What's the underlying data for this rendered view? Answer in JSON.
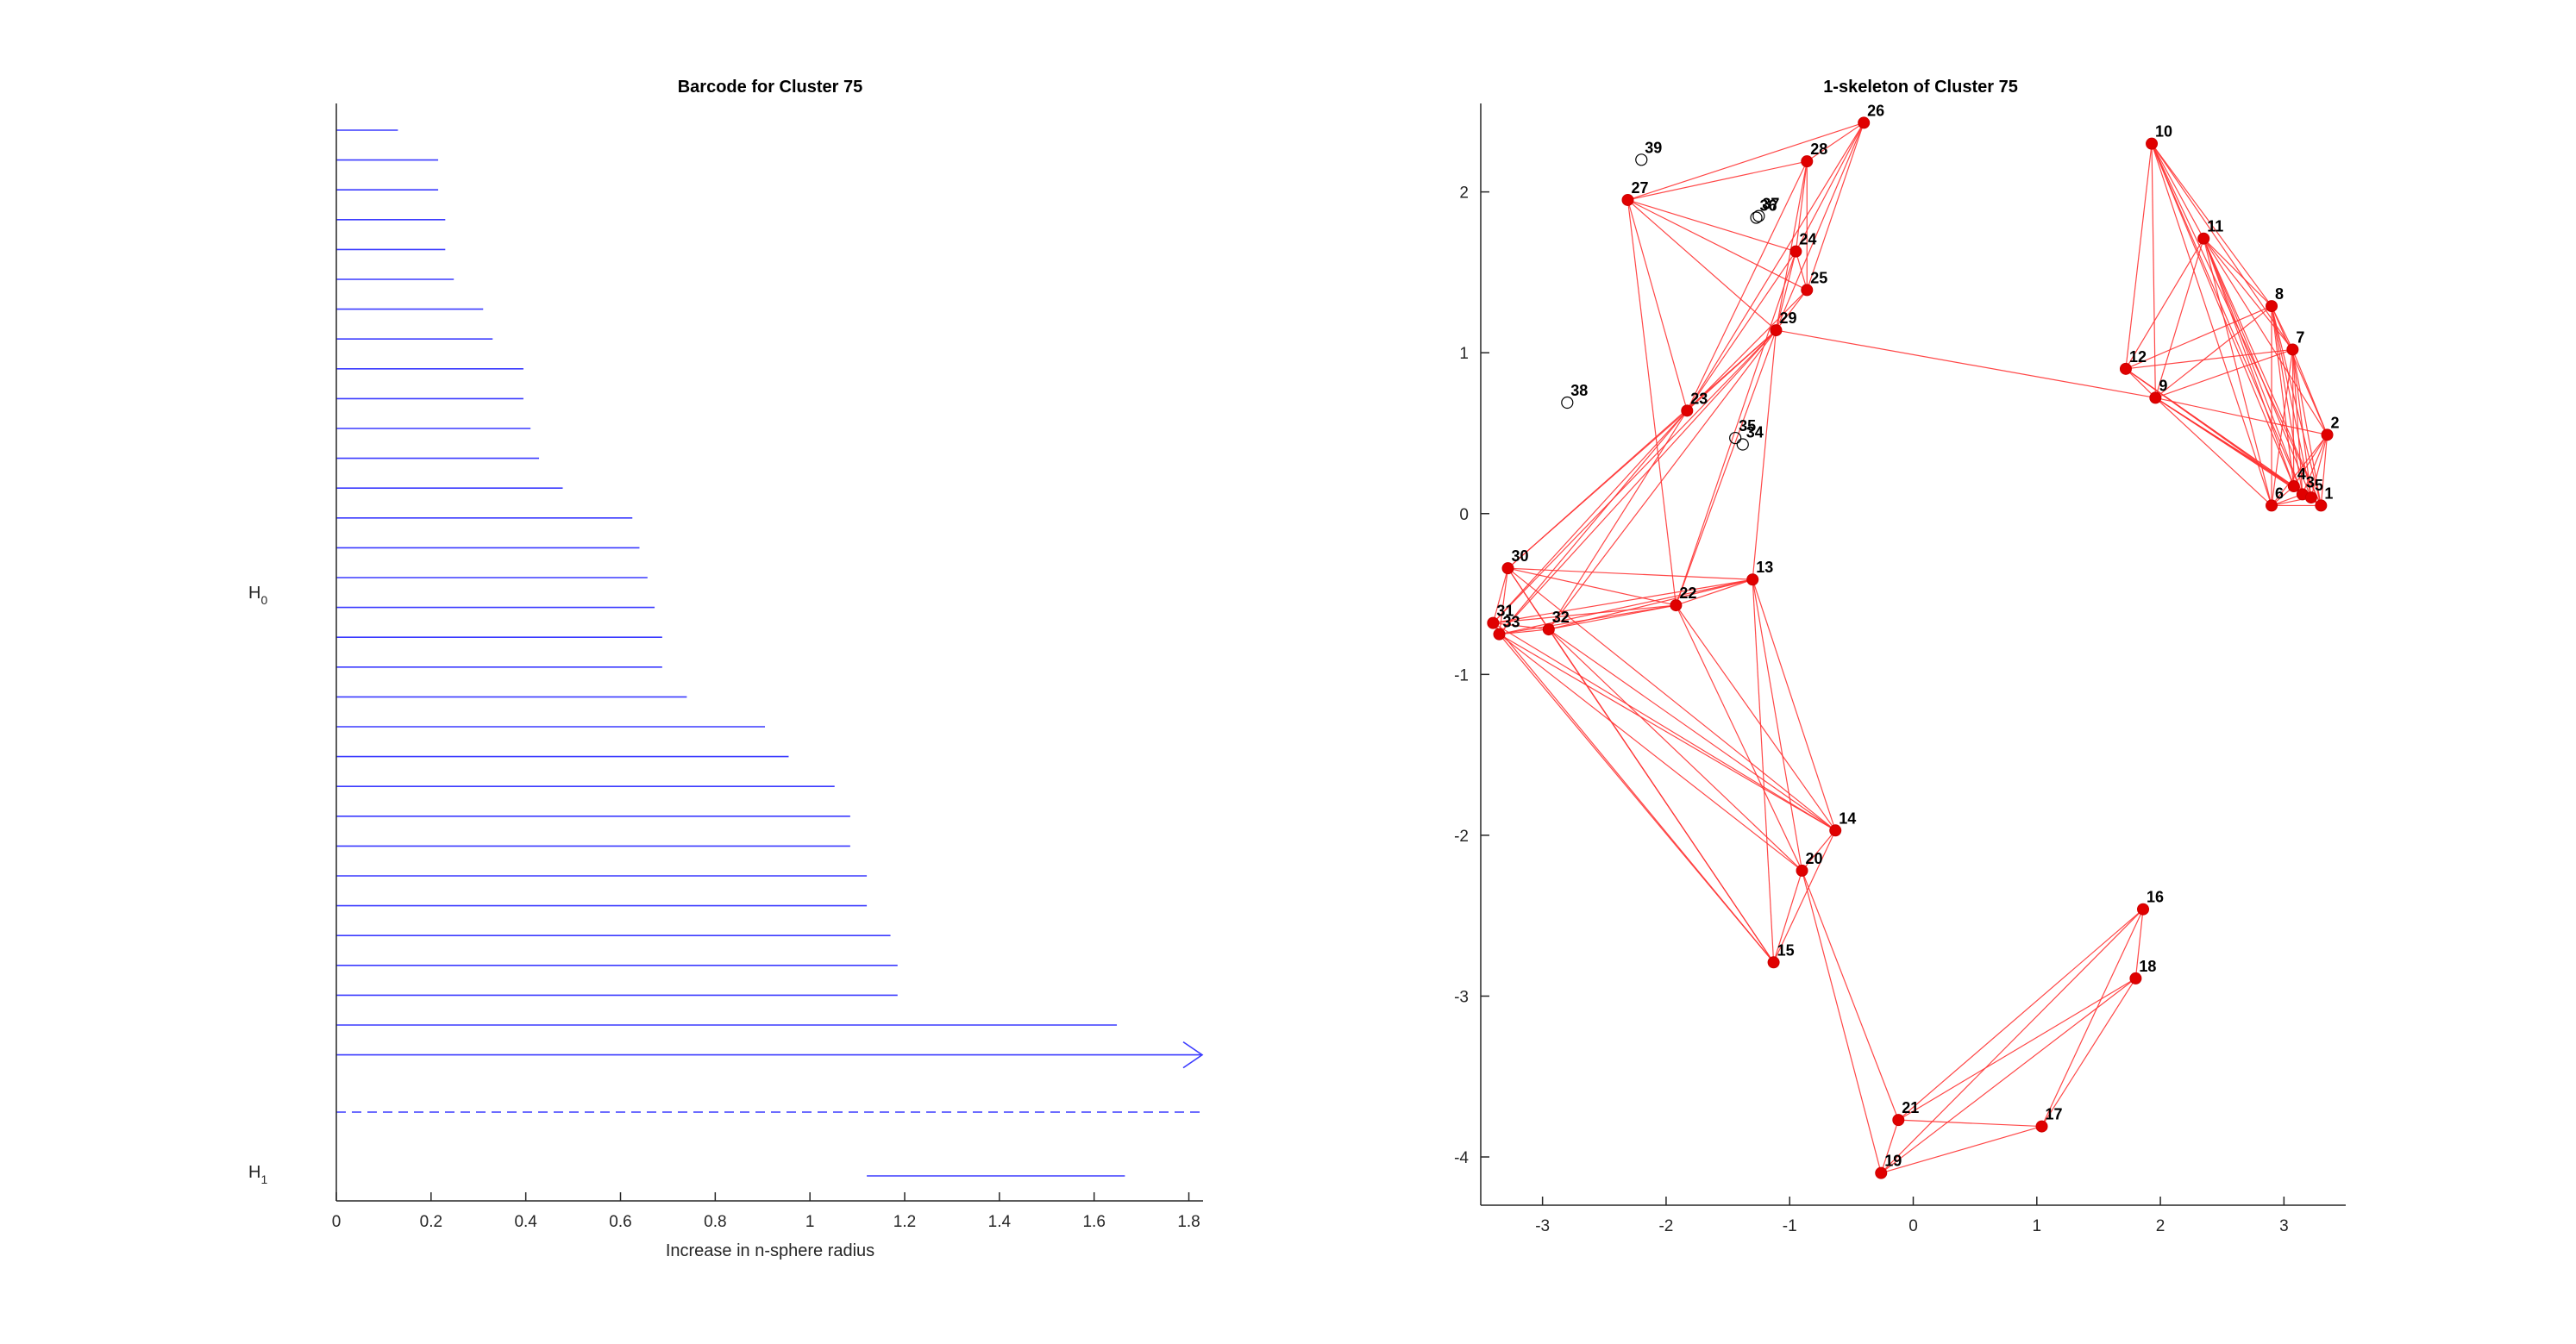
{
  "chart_data": [
    {
      "type": "barcode",
      "title": "Barcode for Cluster 75",
      "xlabel": "Increase in n-sphere radius",
      "xlim": [
        0,
        1.83
      ],
      "xticks": [
        "0",
        "0.2",
        "0.4",
        "0.6",
        "0.8",
        "1",
        "1.2",
        "1.4",
        "1.6",
        "1.8"
      ],
      "series": [
        {
          "name": "H0",
          "label_main": "H",
          "label_sub": "0",
          "bars": [
            [
              0,
              0.13
            ],
            [
              0,
              0.215
            ],
            [
              0,
              0.215
            ],
            [
              0,
              0.23
            ],
            [
              0,
              0.23
            ],
            [
              0,
              0.248
            ],
            [
              0,
              0.31
            ],
            [
              0,
              0.33
            ],
            [
              0,
              0.395
            ],
            [
              0,
              0.395
            ],
            [
              0,
              0.41
            ],
            [
              0,
              0.428
            ],
            [
              0,
              0.478
            ],
            [
              0,
              0.625
            ],
            [
              0,
              0.64
            ],
            [
              0,
              0.657
            ],
            [
              0,
              0.672
            ],
            [
              0,
              0.688
            ],
            [
              0,
              0.688
            ],
            [
              0,
              0.74
            ],
            [
              0,
              0.905
            ],
            [
              0,
              0.955
            ],
            [
              0,
              1.052
            ],
            [
              0,
              1.085
            ],
            [
              0,
              1.085
            ],
            [
              0,
              1.12
            ],
            [
              0,
              1.12
            ],
            [
              0,
              1.17
            ],
            [
              0,
              1.185
            ],
            [
              0,
              1.185
            ],
            [
              0,
              1.648
            ],
            [
              0,
              "Inf"
            ]
          ]
        },
        {
          "name": "H1",
          "label_main": "H",
          "label_sub": "1",
          "bars": [
            [
              1.12,
              1.665
            ]
          ]
        }
      ],
      "separator": "dashed"
    },
    {
      "type": "graph",
      "title": "1-skeleton of Cluster 75",
      "xlim": [
        -3.5,
        3.5
      ],
      "ylim": [
        -4.3,
        2.55
      ],
      "xticks": [
        "-3",
        "-2",
        "-1",
        "0",
        "1",
        "2",
        "3"
      ],
      "yticks": [
        "2",
        "1",
        "0",
        "-1",
        "-2",
        "-3",
        "-4"
      ],
      "nodes": [
        {
          "id": "1",
          "x": 3.3,
          "y": 0.05,
          "filled": true
        },
        {
          "id": "2",
          "x": 3.35,
          "y": 0.49,
          "filled": true
        },
        {
          "id": "3",
          "x": 3.15,
          "y": 0.12,
          "filled": true
        },
        {
          "id": "4",
          "x": 3.08,
          "y": 0.17,
          "filled": true
        },
        {
          "id": "5",
          "x": 3.22,
          "y": 0.1,
          "filled": true
        },
        {
          "id": "6",
          "x": 2.9,
          "y": 0.05,
          "filled": true
        },
        {
          "id": "7",
          "x": 3.07,
          "y": 1.02,
          "filled": true
        },
        {
          "id": "8",
          "x": 2.9,
          "y": 1.29,
          "filled": true
        },
        {
          "id": "9",
          "x": 1.96,
          "y": 0.72,
          "filled": true
        },
        {
          "id": "10",
          "x": 1.93,
          "y": 2.3,
          "filled": true
        },
        {
          "id": "11",
          "x": 2.35,
          "y": 1.71,
          "filled": true
        },
        {
          "id": "12",
          "x": 1.72,
          "y": 0.9,
          "filled": true
        },
        {
          "id": "13",
          "x": -1.3,
          "y": -0.41,
          "filled": true
        },
        {
          "id": "14",
          "x": -0.63,
          "y": -1.97,
          "filled": true
        },
        {
          "id": "15",
          "x": -1.13,
          "y": -2.79,
          "filled": true
        },
        {
          "id": "16",
          "x": 1.86,
          "y": -2.46,
          "filled": true
        },
        {
          "id": "17",
          "x": 1.04,
          "y": -3.81,
          "filled": true
        },
        {
          "id": "18",
          "x": 1.8,
          "y": -2.89,
          "filled": true
        },
        {
          "id": "19",
          "x": -0.26,
          "y": -4.1,
          "filled": true
        },
        {
          "id": "20",
          "x": -0.9,
          "y": -2.22,
          "filled": true
        },
        {
          "id": "21",
          "x": -0.12,
          "y": -3.77,
          "filled": true
        },
        {
          "id": "22",
          "x": -1.92,
          "y": -0.57,
          "filled": true
        },
        {
          "id": "23",
          "x": -1.83,
          "y": 0.64,
          "filled": true
        },
        {
          "id": "24",
          "x": -0.95,
          "y": 1.63,
          "filled": true
        },
        {
          "id": "25",
          "x": -0.86,
          "y": 1.39,
          "filled": true
        },
        {
          "id": "26",
          "x": -0.4,
          "y": 2.43,
          "filled": true
        },
        {
          "id": "27",
          "x": -2.31,
          "y": 1.95,
          "filled": true
        },
        {
          "id": "28",
          "x": -0.86,
          "y": 2.19,
          "filled": true
        },
        {
          "id": "29",
          "x": -1.11,
          "y": 1.14,
          "filled": true
        },
        {
          "id": "30",
          "x": -3.28,
          "y": -0.34,
          "filled": true
        },
        {
          "id": "31",
          "x": -3.4,
          "y": -0.68,
          "filled": true
        },
        {
          "id": "32",
          "x": -2.95,
          "y": -0.72,
          "filled": true
        },
        {
          "id": "33",
          "x": -3.35,
          "y": -0.75,
          "filled": true
        },
        {
          "id": "34",
          "x": -1.38,
          "y": 0.43,
          "filled": false
        },
        {
          "id": "35",
          "x": -1.44,
          "y": 0.47,
          "filled": false
        },
        {
          "id": "36",
          "x": -1.27,
          "y": 1.84,
          "filled": false
        },
        {
          "id": "37",
          "x": -1.25,
          "y": 1.85,
          "filled": false
        },
        {
          "id": "38",
          "x": -2.8,
          "y": 0.69,
          "filled": false
        },
        {
          "id": "39",
          "x": -2.2,
          "y": 2.2,
          "filled": false
        }
      ],
      "edges": [
        [
          "1",
          "2"
        ],
        [
          "1",
          "3"
        ],
        [
          "1",
          "4"
        ],
        [
          "1",
          "5"
        ],
        [
          "1",
          "6"
        ],
        [
          "1",
          "7"
        ],
        [
          "1",
          "8"
        ],
        [
          "1",
          "9"
        ],
        [
          "1",
          "10"
        ],
        [
          "1",
          "11"
        ],
        [
          "1",
          "12"
        ],
        [
          "2",
          "3"
        ],
        [
          "2",
          "4"
        ],
        [
          "2",
          "5"
        ],
        [
          "2",
          "6"
        ],
        [
          "2",
          "7"
        ],
        [
          "2",
          "8"
        ],
        [
          "2",
          "9"
        ],
        [
          "2",
          "11"
        ],
        [
          "3",
          "4"
        ],
        [
          "3",
          "5"
        ],
        [
          "3",
          "6"
        ],
        [
          "3",
          "7"
        ],
        [
          "3",
          "8"
        ],
        [
          "3",
          "9"
        ],
        [
          "3",
          "10"
        ],
        [
          "3",
          "11"
        ],
        [
          "3",
          "12"
        ],
        [
          "4",
          "5"
        ],
        [
          "4",
          "6"
        ],
        [
          "4",
          "7"
        ],
        [
          "4",
          "8"
        ],
        [
          "4",
          "9"
        ],
        [
          "4",
          "10"
        ],
        [
          "4",
          "11"
        ],
        [
          "4",
          "12"
        ],
        [
          "5",
          "6"
        ],
        [
          "5",
          "7"
        ],
        [
          "5",
          "8"
        ],
        [
          "5",
          "9"
        ],
        [
          "5",
          "11"
        ],
        [
          "6",
          "7"
        ],
        [
          "6",
          "8"
        ],
        [
          "6",
          "9"
        ],
        [
          "6",
          "10"
        ],
        [
          "6",
          "11"
        ],
        [
          "7",
          "8"
        ],
        [
          "7",
          "9"
        ],
        [
          "7",
          "10"
        ],
        [
          "7",
          "11"
        ],
        [
          "7",
          "12"
        ],
        [
          "8",
          "9"
        ],
        [
          "8",
          "10"
        ],
        [
          "8",
          "11"
        ],
        [
          "8",
          "12"
        ],
        [
          "9",
          "10"
        ],
        [
          "9",
          "11"
        ],
        [
          "9",
          "12"
        ],
        [
          "10",
          "11"
        ],
        [
          "10",
          "12"
        ],
        [
          "11",
          "12"
        ],
        [
          "9",
          "29"
        ],
        [
          "23",
          "24"
        ],
        [
          "23",
          "25"
        ],
        [
          "23",
          "26"
        ],
        [
          "23",
          "28"
        ],
        [
          "23",
          "29"
        ],
        [
          "23",
          "27"
        ],
        [
          "23",
          "30"
        ],
        [
          "23",
          "31"
        ],
        [
          "23",
          "33"
        ],
        [
          "23",
          "32"
        ],
        [
          "24",
          "25"
        ],
        [
          "24",
          "26"
        ],
        [
          "24",
          "27"
        ],
        [
          "24",
          "28"
        ],
        [
          "24",
          "29"
        ],
        [
          "24",
          "22"
        ],
        [
          "25",
          "26"
        ],
        [
          "25",
          "27"
        ],
        [
          "25",
          "28"
        ],
        [
          "25",
          "29"
        ],
        [
          "26",
          "27"
        ],
        [
          "26",
          "28"
        ],
        [
          "26",
          "29"
        ],
        [
          "27",
          "28"
        ],
        [
          "27",
          "29"
        ],
        [
          "28",
          "29"
        ],
        [
          "27",
          "22"
        ],
        [
          "29",
          "30"
        ],
        [
          "29",
          "31"
        ],
        [
          "29",
          "33"
        ],
        [
          "29",
          "32"
        ],
        [
          "29",
          "22"
        ],
        [
          "29",
          "13"
        ],
        [
          "22",
          "13"
        ],
        [
          "22",
          "30"
        ],
        [
          "22",
          "31"
        ],
        [
          "22",
          "32"
        ],
        [
          "22",
          "33"
        ],
        [
          "22",
          "14"
        ],
        [
          "22",
          "20"
        ],
        [
          "13",
          "30"
        ],
        [
          "13",
          "31"
        ],
        [
          "13",
          "32"
        ],
        [
          "13",
          "33"
        ],
        [
          "13",
          "14"
        ],
        [
          "13",
          "15"
        ],
        [
          "13",
          "20"
        ],
        [
          "30",
          "31"
        ],
        [
          "30",
          "32"
        ],
        [
          "30",
          "33"
        ],
        [
          "31",
          "32"
        ],
        [
          "31",
          "33"
        ],
        [
          "32",
          "33"
        ],
        [
          "30",
          "14"
        ],
        [
          "30",
          "15"
        ],
        [
          "31",
          "14"
        ],
        [
          "31",
          "15"
        ],
        [
          "33",
          "14"
        ],
        [
          "33",
          "15"
        ],
        [
          "33",
          "20"
        ],
        [
          "32",
          "14"
        ],
        [
          "32",
          "15"
        ],
        [
          "32",
          "20"
        ],
        [
          "14",
          "15"
        ],
        [
          "14",
          "20"
        ],
        [
          "15",
          "20"
        ],
        [
          "20",
          "19"
        ],
        [
          "20",
          "21"
        ],
        [
          "21",
          "16"
        ],
        [
          "21",
          "17"
        ],
        [
          "21",
          "18"
        ],
        [
          "21",
          "19"
        ],
        [
          "19",
          "16"
        ],
        [
          "19",
          "17"
        ],
        [
          "19",
          "18"
        ],
        [
          "16",
          "17"
        ],
        [
          "16",
          "18"
        ],
        [
          "17",
          "18"
        ]
      ]
    }
  ]
}
